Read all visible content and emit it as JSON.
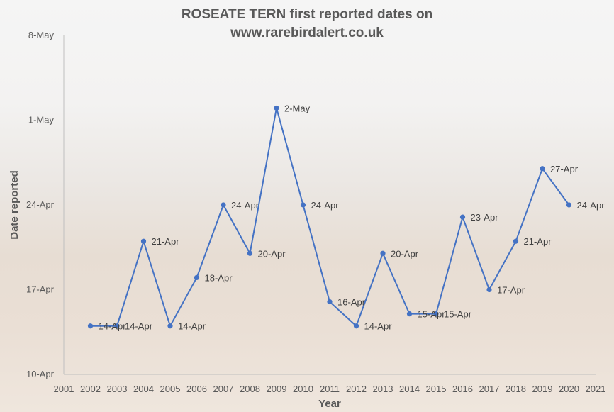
{
  "colors": {
    "line": "#4472c4",
    "axis_text": "#595959",
    "axis_line": "#bfbfbf"
  },
  "chart_data": {
    "type": "line",
    "title_line1": "ROSEATE TERN first reported dates on",
    "title_line2": "www.rarebirdalert.co.uk",
    "xlabel": "Year",
    "ylabel": "Date reported",
    "x_ticks": [
      "2001",
      "2002",
      "2003",
      "2004",
      "2005",
      "2006",
      "2007",
      "2008",
      "2009",
      "2010",
      "2011",
      "2012",
      "2013",
      "2014",
      "2015",
      "2016",
      "2017",
      "2018",
      "2019",
      "2020",
      "2021"
    ],
    "y_ticks": [
      "10-Apr",
      "17-Apr",
      "24-Apr",
      "1-May",
      "8-May"
    ],
    "xlim": [
      2001,
      2021
    ],
    "ylim": [
      "10-Apr",
      "8-May"
    ],
    "grid": false,
    "series": [
      {
        "points": [
          {
            "x": 2002,
            "y": "14-Apr"
          },
          {
            "x": 2003,
            "y": "14-Apr"
          },
          {
            "x": 2004,
            "y": "21-Apr"
          },
          {
            "x": 2005,
            "y": "14-Apr"
          },
          {
            "x": 2006,
            "y": "18-Apr"
          },
          {
            "x": 2007,
            "y": "24-Apr"
          },
          {
            "x": 2008,
            "y": "20-Apr"
          },
          {
            "x": 2009,
            "y": "2-May"
          },
          {
            "x": 2010,
            "y": "24-Apr"
          },
          {
            "x": 2011,
            "y": "16-Apr"
          },
          {
            "x": 2012,
            "y": "14-Apr"
          },
          {
            "x": 2013,
            "y": "20-Apr"
          },
          {
            "x": 2014,
            "y": "15-Apr"
          },
          {
            "x": 2015,
            "y": "15-Apr"
          },
          {
            "x": 2016,
            "y": "23-Apr"
          },
          {
            "x": 2017,
            "y": "17-Apr"
          },
          {
            "x": 2018,
            "y": "21-Apr"
          },
          {
            "x": 2019,
            "y": "27-Apr"
          },
          {
            "x": 2020,
            "y": "24-Apr"
          }
        ]
      }
    ]
  }
}
